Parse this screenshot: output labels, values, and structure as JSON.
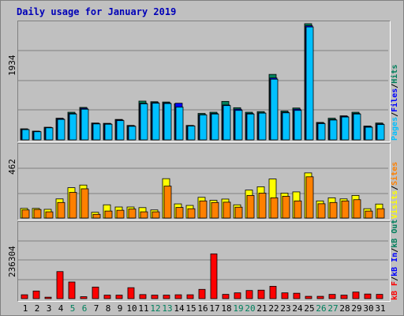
{
  "title": "Daily usage for January 2019",
  "colors": {
    "hits": "#00805c",
    "files": "#0000ff",
    "pages": "#00c0ff",
    "visits": "#ffff00",
    "sites": "#ff8000",
    "kb_in": "#0000ff",
    "kb_out": "#00805c",
    "kb_f": "#ff0000",
    "grid": "#808080",
    "day_weekday": "#000000",
    "day_weekend": "#00805c"
  },
  "legends": {
    "top": [
      {
        "text": "Pages",
        "color": "#00c0ff"
      },
      {
        "text": "/",
        "color": "#000000"
      },
      {
        "text": "Files",
        "color": "#0000ff"
      },
      {
        "text": "/",
        "color": "#000000"
      },
      {
        "text": "Hits",
        "color": "#00805c"
      }
    ],
    "middle": [
      {
        "text": "Visits",
        "color": "#ffff00"
      },
      {
        "text": "/",
        "color": "#000000"
      },
      {
        "text": "Sites",
        "color": "#ff8000"
      }
    ],
    "bottom": [
      {
        "text": "kB F",
        "color": "#ff0000"
      },
      {
        "text": "/",
        "color": "#000000"
      },
      {
        "text": "kB In",
        "color": "#0000ff"
      },
      {
        "text": "/",
        "color": "#000000"
      },
      {
        "text": "kB Out",
        "color": "#00805c"
      }
    ]
  },
  "axis": {
    "top_max_label": "1934",
    "middle_max_label": "462",
    "bottom_max_label": "236304"
  },
  "chart_data": {
    "type": "bar",
    "title": "Daily usage for January 2019",
    "x": [
      "1",
      "2",
      "3",
      "4",
      "5",
      "6",
      "7",
      "8",
      "9",
      "10",
      "11",
      "12",
      "13",
      "14",
      "15",
      "16",
      "17",
      "18",
      "19",
      "20",
      "21",
      "22",
      "23",
      "24",
      "25",
      "26",
      "27",
      "28",
      "29",
      "30",
      "31"
    ],
    "weekend_days": [
      "5",
      "6",
      "12",
      "13",
      "19",
      "20",
      "26",
      "27"
    ],
    "panels": [
      {
        "name": "pages-files-hits",
        "ylim": [
          0,
          1934
        ],
        "series": [
          {
            "name": "Hits",
            "values": [
              184,
              145,
              210,
              360,
              460,
              540,
              280,
              275,
              340,
              240,
              645,
              635,
              630,
              600,
              240,
              440,
              460,
              640,
              535,
              460,
              470,
              1090,
              480,
              530,
              1934,
              290,
              360,
              400,
              460,
              230,
              280
            ]
          },
          {
            "name": "Files",
            "values": [
              174,
              140,
              204,
              350,
              440,
              525,
              275,
              268,
              330,
              232,
              610,
              620,
              615,
              610,
              235,
              420,
              440,
              580,
              510,
              440,
              450,
              1030,
              460,
              510,
              1900,
              280,
              340,
              390,
              440,
              220,
              265
            ]
          },
          {
            "name": "Pages",
            "values": [
              170,
              135,
              200,
              340,
              430,
              510,
              265,
              260,
              320,
              225,
              600,
              610,
              605,
              545,
              230,
              415,
              430,
              570,
              490,
              430,
              445,
              1010,
              450,
              490,
              1880,
              270,
              330,
              380,
              430,
              210,
              255
            ]
          }
        ]
      },
      {
        "name": "visits-sites",
        "ylim": [
          0,
          462
        ],
        "series": [
          {
            "name": "Visits",
            "values": [
              62,
              62,
              56,
              123,
              195,
              212,
              37,
              85,
              71,
              71,
              67,
              52,
              253,
              91,
              81,
              133,
              114,
              122,
              85,
              180,
              201,
              251,
              160,
              168,
              290,
              110,
              130,
              123,
              145,
              60,
              90
            ]
          },
          {
            "name": "Sites",
            "values": [
              52,
              55,
              40,
              100,
              165,
              188,
              24,
              45,
              50,
              58,
              40,
              40,
              205,
              68,
              60,
              110,
              100,
              102,
              70,
              145,
              160,
              130,
              140,
              110,
              265,
              92,
              100,
              110,
              118,
              45,
              60
            ]
          }
        ]
      },
      {
        "name": "kb",
        "ylim": [
          0,
          236304
        ],
        "series": [
          {
            "name": "kB F",
            "values": [
              12400,
              24500,
              4700,
              87000,
              53400,
              6200,
              37200,
              11200,
              11200,
              35200,
              13000,
              11200,
              11200,
              12400,
              12400,
              29800,
              144000,
              13700,
              18600,
              26100,
              27300,
              39700,
              18600,
              17400,
              7400,
              7400,
              13600,
              11200,
              21100,
              14800,
              13700
            ]
          }
        ]
      }
    ]
  }
}
